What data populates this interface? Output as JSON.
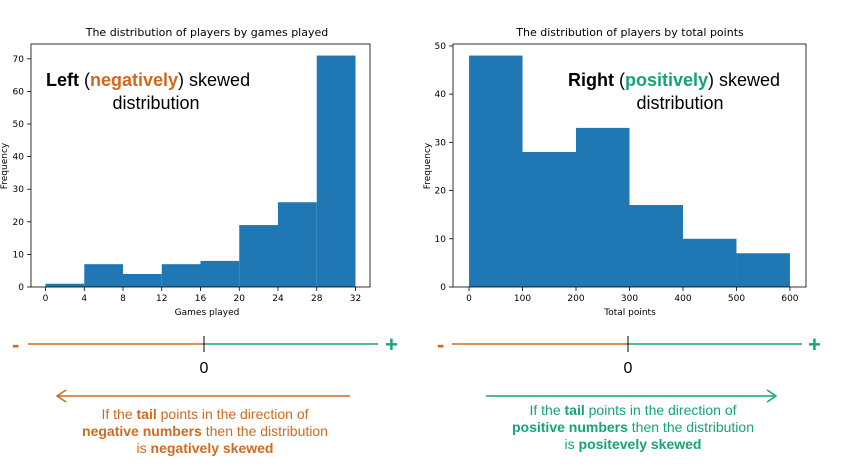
{
  "colors": {
    "bar": "#1f77b4",
    "negative": "#d2691e",
    "positive": "#16a37a"
  },
  "chart_data": [
    {
      "type": "bar",
      "title": "The distribution of players by games played",
      "xlabel": "Games played",
      "ylabel": "Frequency",
      "bin_edges": [
        0,
        4,
        8,
        12,
        16,
        20,
        24,
        28,
        32
      ],
      "values": [
        1,
        7,
        4,
        7,
        8,
        19,
        26,
        71
      ],
      "xticks": [
        0,
        4,
        8,
        12,
        16,
        20,
        24,
        28,
        32
      ],
      "yticks": [
        0,
        10,
        20,
        30,
        40,
        50,
        60,
        70
      ],
      "xlim": [
        -1.5,
        33.5
      ],
      "ylim": [
        0,
        74.55
      ],
      "annotation": {
        "bold": "Left",
        "open": " (",
        "colored": "negatively",
        "close": ") skewed",
        "line2": "distribution"
      }
    },
    {
      "type": "bar",
      "title": "The distribution of players by total points",
      "xlabel": "Total points",
      "ylabel": "Frequency",
      "bin_edges": [
        0,
        100,
        200,
        300,
        400,
        500,
        600
      ],
      "values": [
        48,
        28,
        33,
        17,
        10,
        7
      ],
      "xticks": [
        0,
        100,
        200,
        300,
        400,
        500,
        600
      ],
      "yticks": [
        0,
        10,
        20,
        30,
        40,
        50
      ],
      "xlim": [
        -30,
        630
      ],
      "ylim": [
        0,
        50.4
      ],
      "annotation": {
        "bold": "Right",
        "open": " (",
        "colored": "positively",
        "close": ") skewed",
        "line2": "distribution"
      }
    }
  ],
  "number_lines": {
    "minus": "-",
    "plus": "+",
    "zero": "0"
  },
  "explanations": {
    "left": {
      "p1": "If the ",
      "b1": "tail",
      "p2": " points in the direction of",
      "b2": "negative numbers",
      "p3": " then the distribution",
      "p4": "is ",
      "b3": "negatively skewed"
    },
    "right": {
      "p1": "If the ",
      "b1": "tail",
      "p2": " points in the direction of",
      "b2": "positive numbers",
      "p3": " then the distribution",
      "p4": "is ",
      "b3": "positevely skewed"
    }
  }
}
